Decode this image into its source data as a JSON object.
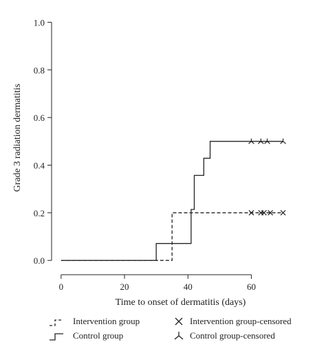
{
  "chart_data": {
    "type": "line",
    "title": "",
    "xlabel": "Time to onset of dermatitis (days)",
    "ylabel": "Grade 3 radiation dermatitis",
    "xlim": [
      -3,
      74
    ],
    "ylim": [
      -0.06,
      1.03
    ],
    "xticks": [
      0,
      20,
      40,
      60
    ],
    "xtick_labels": [
      "0",
      "20",
      "40",
      "60"
    ],
    "yticks": [
      0.0,
      0.2,
      0.4,
      0.6,
      0.8,
      1.0
    ],
    "ytick_labels": [
      "0.0",
      "0.2",
      "0.4",
      "0.6",
      "0.8",
      "1.0"
    ],
    "grid": false,
    "legend_position": "bottom",
    "series": [
      {
        "name": "Intervention group",
        "style": "dashed",
        "step_x": [
          0,
          35,
          70
        ],
        "step_y": [
          0.0,
          0.2,
          0.2
        ],
        "censored_label": "Intervention group-censored",
        "censored_marker": "x",
        "censored_x": [
          60,
          63,
          64,
          66,
          70
        ],
        "censored_y": [
          0.2,
          0.2,
          0.2,
          0.2,
          0.2
        ]
      },
      {
        "name": "Control group",
        "style": "solid",
        "step_x": [
          0,
          30,
          41,
          42,
          45,
          47,
          70
        ],
        "step_y": [
          0.0,
          0.071,
          0.214,
          0.357,
          0.429,
          0.5,
          0.5
        ],
        "censored_label": "Control group-censored",
        "censored_marker": "tri-up",
        "censored_x": [
          60,
          63,
          65,
          70
        ],
        "censored_y": [
          0.5,
          0.5,
          0.5,
          0.5
        ]
      }
    ]
  },
  "legend": {
    "items": [
      "Intervention group",
      "Intervention group-censored",
      "Control group",
      "Control group-censored"
    ]
  }
}
